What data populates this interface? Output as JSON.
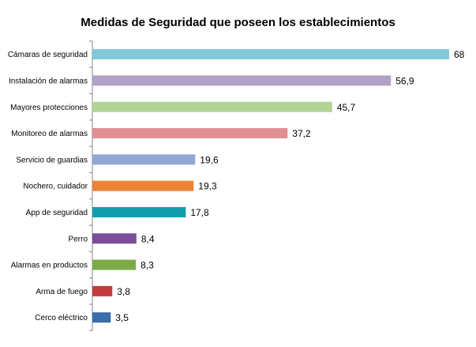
{
  "chart_data": {
    "type": "bar",
    "orientation": "horizontal",
    "title": "Medidas de Seguridad que poseen los establecimientos",
    "xlabel": "",
    "ylabel": "",
    "grid": false,
    "legend": "none",
    "categories": [
      "Cámaras de seguridad",
      "Instalación de alarmas",
      "Mayores protecciones",
      "Monitoreo de alarmas",
      "Servicio de guardias",
      "Nochero, cuidador",
      "App de seguridad",
      "Perro",
      "Alarmas en productos",
      "Arma de fuego",
      "Cerco eléctrico"
    ],
    "values": [
      68,
      56.9,
      45.7,
      37.2,
      19.6,
      19.3,
      17.8,
      8.4,
      8.3,
      3.8,
      3.5
    ],
    "value_labels": [
      "68",
      "56,9",
      "45,7",
      "37,2",
      "19,6",
      "19,3",
      "17,8",
      "8,4",
      "8,3",
      "3,8",
      "3,5"
    ],
    "colors": [
      "#7fc9d9",
      "#b3a0c8",
      "#b2d492",
      "#e08f93",
      "#91a8d6",
      "#ee8337",
      "#119cad",
      "#7b4d9a",
      "#7bab48",
      "#c23b3d",
      "#3a6eaa"
    ],
    "xlim": [
      0,
      68
    ]
  }
}
